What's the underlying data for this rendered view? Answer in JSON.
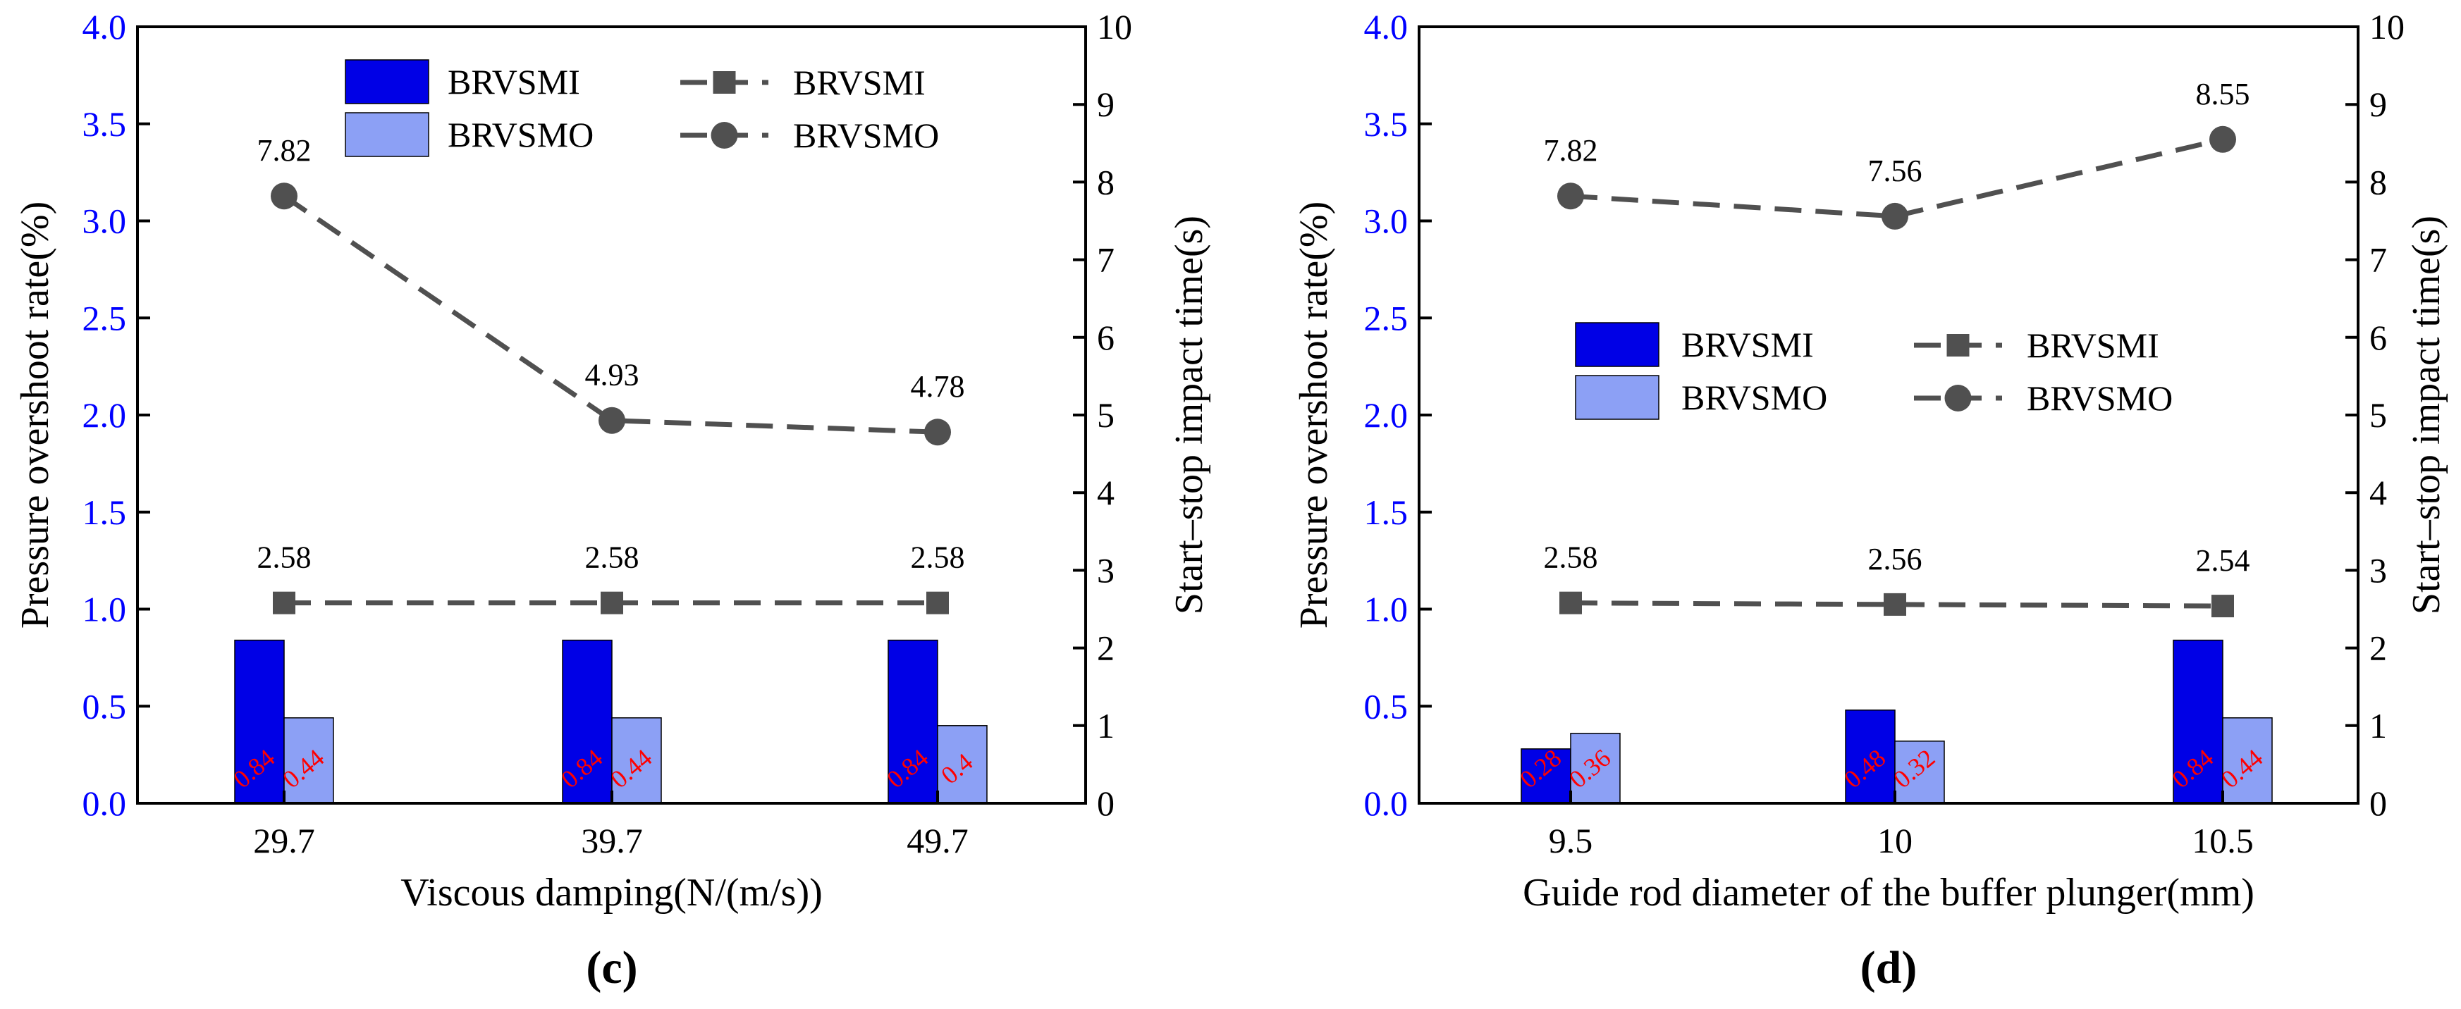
{
  "colors": {
    "left_axis": "#0000ff",
    "bar_smi": "#0000e6",
    "bar_smo": "#8ca0f5",
    "bar_label": "#ff0000",
    "line": "#505050",
    "axis": "#000000"
  },
  "chart_data": [
    {
      "panel_label": "(c)",
      "type": "bar+line",
      "xlabel": "Viscous damping(N/(m/s))",
      "ylabel_left": "Pressure overshoot rate(%)",
      "ylabel_right": "Start–stop impact time(s)",
      "ylim_left": [
        0,
        4.0
      ],
      "ylim_right": [
        0,
        10
      ],
      "yticks_left": [
        "0.0",
        "0.5",
        "1.0",
        "1.5",
        "2.0",
        "2.5",
        "3.0",
        "3.5",
        "4.0"
      ],
      "yticks_right": [
        "0",
        "1",
        "2",
        "3",
        "4",
        "5",
        "6",
        "7",
        "8",
        "9",
        "10"
      ],
      "categories": [
        "29.7",
        "39.7",
        "49.7"
      ],
      "bar_series": [
        {
          "name": "BRVSMI",
          "values": [
            0.84,
            0.84,
            0.84
          ],
          "labels": [
            "0.84",
            "0.84",
            "0.84"
          ]
        },
        {
          "name": "BRVSMO",
          "values": [
            0.44,
            0.44,
            0.4
          ],
          "labels": [
            "0.44",
            "0.44",
            "0.4"
          ]
        }
      ],
      "line_series": [
        {
          "name": "BRVSMI",
          "marker": "square",
          "values": [
            2.58,
            2.58,
            2.58
          ],
          "labels": [
            "2.58",
            "2.58",
            "2.58"
          ]
        },
        {
          "name": "BRVSMO",
          "marker": "circle",
          "values": [
            7.82,
            4.93,
            4.78
          ],
          "labels": [
            "7.82",
            "4.93",
            "4.78"
          ]
        }
      ],
      "legend_placement": "top"
    },
    {
      "panel_label": "(d)",
      "type": "bar+line",
      "xlabel": "Guide rod diameter of the buffer plunger(mm)",
      "ylabel_left": "Pressure overshoot rate(%)",
      "ylabel_right": "Start–stop impact time(s)",
      "ylim_left": [
        0,
        4.0
      ],
      "ylim_right": [
        0,
        10
      ],
      "yticks_left": [
        "0.0",
        "0.5",
        "1.0",
        "1.5",
        "2.0",
        "2.5",
        "3.0",
        "3.5",
        "4.0"
      ],
      "yticks_right": [
        "0",
        "1",
        "2",
        "3",
        "4",
        "5",
        "6",
        "7",
        "8",
        "9",
        "10"
      ],
      "categories": [
        "9.5",
        "10",
        "10.5"
      ],
      "bar_series": [
        {
          "name": "BRVSMI",
          "values": [
            0.28,
            0.48,
            0.84
          ],
          "labels": [
            "0.28",
            "0.48",
            "0.84"
          ]
        },
        {
          "name": "BRVSMO",
          "values": [
            0.36,
            0.32,
            0.44
          ],
          "labels": [
            "0.36",
            "0.32",
            "0.44"
          ]
        }
      ],
      "line_series": [
        {
          "name": "BRVSMI",
          "marker": "square",
          "values": [
            2.58,
            2.56,
            2.54
          ],
          "labels": [
            "2.58",
            "2.56",
            "2.54"
          ]
        },
        {
          "name": "BRVSMO",
          "marker": "circle",
          "values": [
            7.82,
            7.56,
            8.55
          ],
          "labels": [
            "7.82",
            "7.56",
            "8.55"
          ]
        }
      ],
      "legend_placement": "center"
    }
  ]
}
